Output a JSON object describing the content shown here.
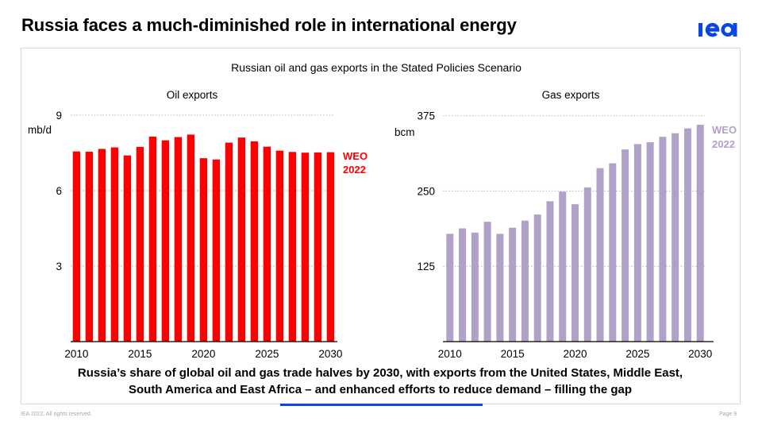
{
  "header": {
    "title": "Russia faces a much-diminished role in international energy",
    "logo": "iea"
  },
  "panel": {
    "title": "Russian oil and gas exports in the Stated Policies Scenario"
  },
  "caption": {
    "lines": [
      "Russia’s share of global oil and gas trade halves by 2030, with exports from the United States, Middle East,",
      "South America and East Africa – and enhanced efforts to reduce demand – filling the gap"
    ]
  },
  "footer": {
    "copyright": "IEA 2022. All rights reserved.",
    "page": "Page 9"
  },
  "colors": {
    "brand_blue": "#0a46e6",
    "oil": "#ff0000",
    "gas": "#b1a0c7",
    "gridline": "#bfbfbf",
    "axis": "#000000"
  },
  "chart_data": [
    {
      "type": "bar",
      "title": "Oil exports",
      "xlabel": "",
      "ylabel": "mb/d",
      "categories": [
        2010,
        2011,
        2012,
        2013,
        2014,
        2015,
        2016,
        2017,
        2018,
        2019,
        2020,
        2021,
        2022,
        2023,
        2024,
        2025,
        2026,
        2027,
        2028,
        2029,
        2030
      ],
      "values": [
        7.56,
        7.55,
        7.66,
        7.72,
        7.4,
        7.74,
        8.15,
        8.0,
        8.13,
        8.23,
        7.29,
        7.24,
        7.91,
        8.11,
        7.96,
        7.75,
        7.59,
        7.54,
        7.51,
        7.52,
        7.53
      ],
      "ylim": [
        0,
        9
      ],
      "yticks": [
        3,
        6,
        9
      ],
      "xtick_labels": [
        "2010",
        "2015",
        "2020",
        "2025",
        "2030"
      ],
      "grid": true,
      "annotation": [
        "WEO",
        "2022"
      ],
      "color": "#ff0000"
    },
    {
      "type": "bar",
      "title": "Gas exports",
      "xlabel": "",
      "ylabel": "bcm",
      "categories": [
        2010,
        2011,
        2012,
        2013,
        2014,
        2015,
        2016,
        2017,
        2018,
        2019,
        2020,
        2021,
        2022,
        2023,
        2024,
        2025,
        2026,
        2027,
        2028,
        2029,
        2030
      ],
      "values": [
        179,
        188,
        181,
        199,
        179,
        189,
        201,
        211,
        233,
        249,
        228,
        256,
        288,
        296,
        319,
        328,
        331,
        340,
        346,
        354,
        360
      ],
      "ylim": [
        0,
        375
      ],
      "yticks": [
        125,
        250,
        375
      ],
      "xtick_labels": [
        "2010",
        "2015",
        "2020",
        "2025",
        "2030"
      ],
      "grid": true,
      "annotation": [
        "WEO",
        "2022"
      ],
      "color": "#b1a0c7"
    }
  ]
}
